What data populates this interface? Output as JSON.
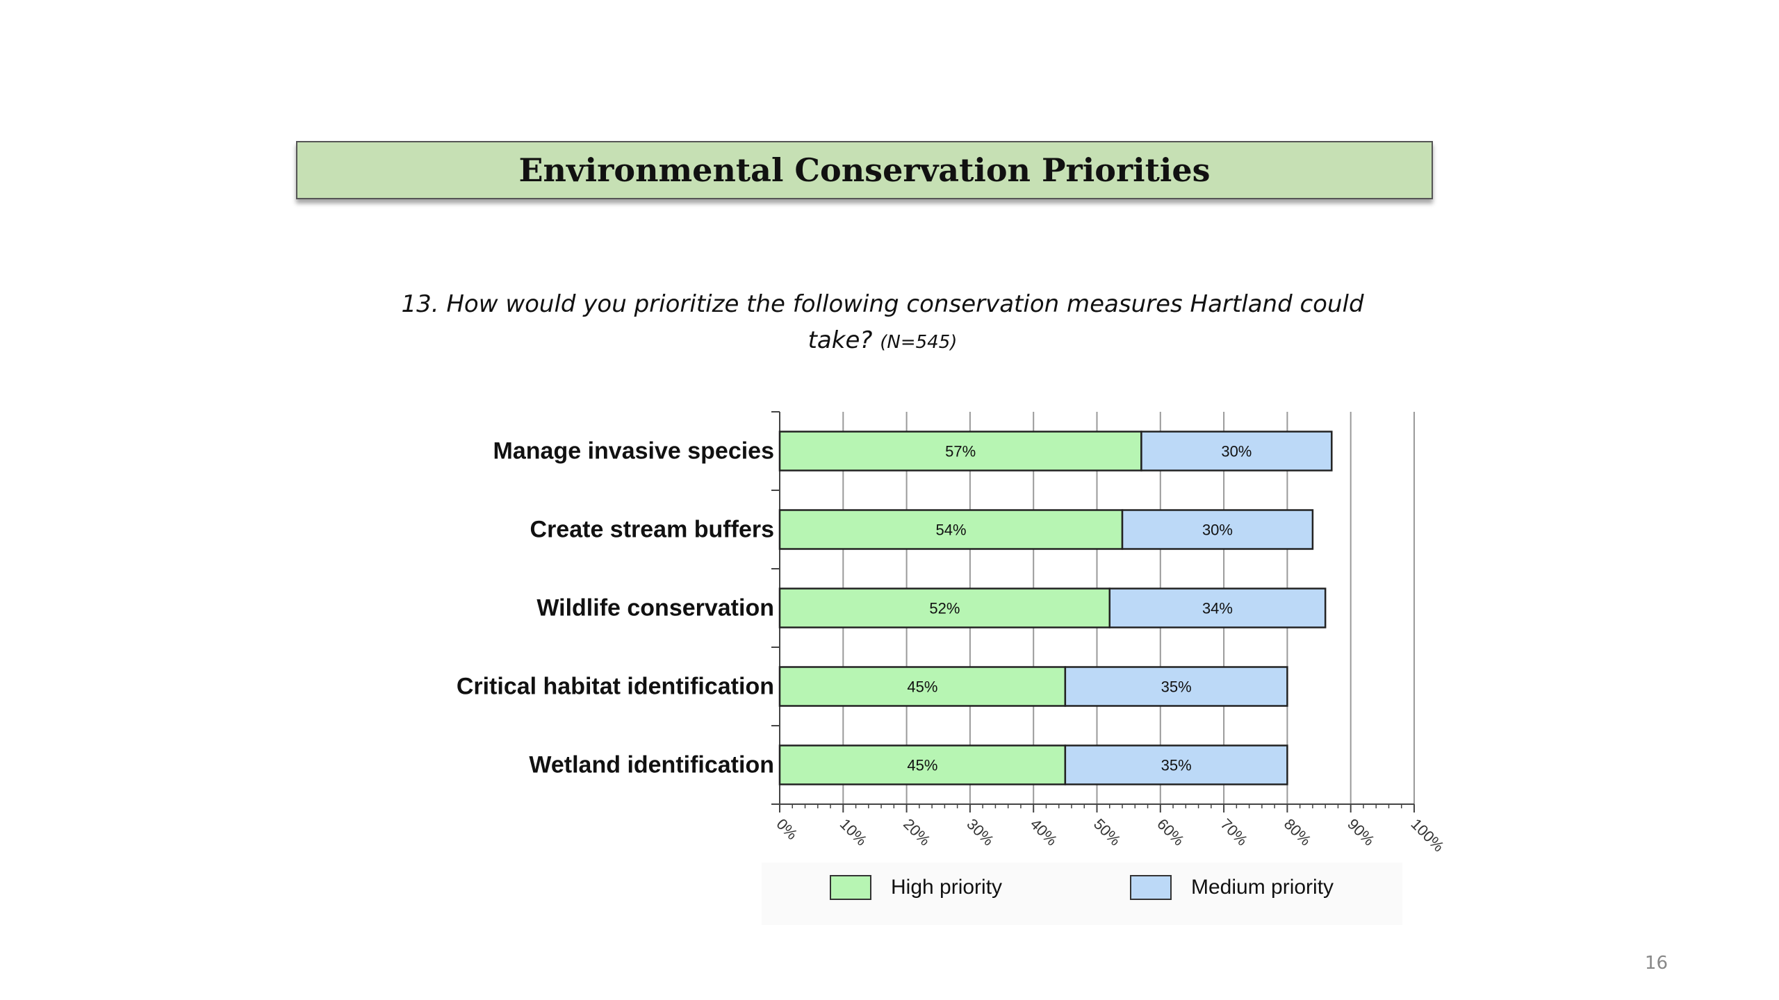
{
  "slide": {
    "title": "Environmental Conservation Priorities",
    "question": "13. How would you prioritize the following conservation measures Hartland could take?",
    "sample_size": "(N=545)",
    "page_number": "16"
  },
  "colors": {
    "high": "#b7f5b3",
    "medium": "#bcd9f7",
    "banner": "#c6e0b4"
  },
  "chart_data": {
    "type": "bar",
    "orientation": "horizontal",
    "stacked": true,
    "categories": [
      "Manage invasive species",
      "Create stream buffers",
      "Wildlife conservation",
      "Critical habitat identification",
      "Wetland identification"
    ],
    "series": [
      {
        "name": "High priority",
        "values": [
          57,
          54,
          52,
          45,
          45
        ],
        "labels": [
          "57%",
          "54%",
          "52%",
          "45%",
          "45%"
        ]
      },
      {
        "name": "Medium priority",
        "values": [
          30,
          30,
          34,
          35,
          35
        ],
        "labels": [
          "30%",
          "30%",
          "34%",
          "35%",
          "35%"
        ]
      }
    ],
    "xlim": [
      0,
      100
    ],
    "xticks": [
      "0%",
      "10%",
      "20%",
      "30%",
      "40%",
      "50%",
      "60%",
      "70%",
      "80%",
      "90%",
      "100%"
    ],
    "grid": true,
    "legend_position": "bottom"
  }
}
